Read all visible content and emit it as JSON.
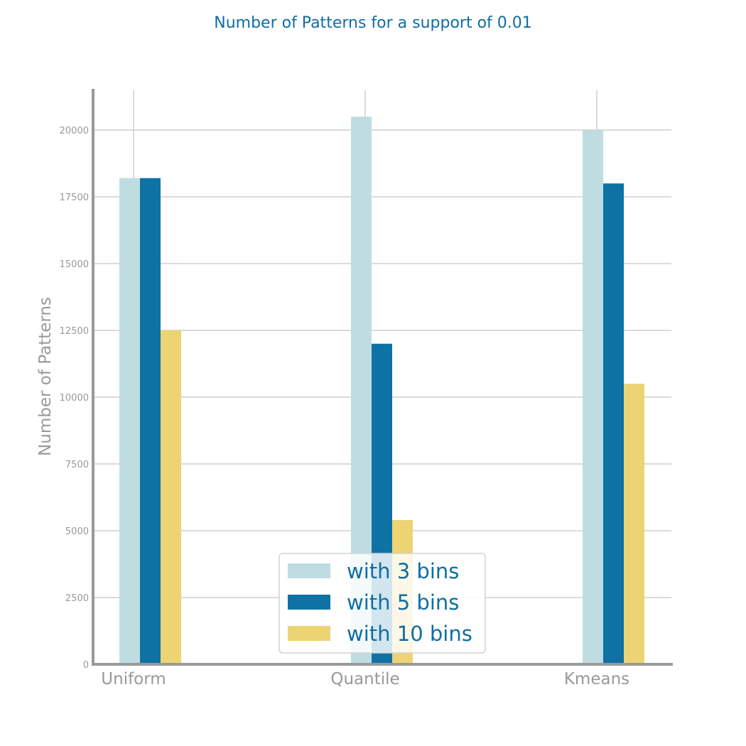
{
  "chart_data": {
    "type": "bar",
    "title": "Number of Patterns for a support of 0.01",
    "xlabel": "",
    "ylabel": "Number of Patterns",
    "categories": [
      "Uniform",
      "Quantile",
      "Kmeans"
    ],
    "series": [
      {
        "name": "with 3 bins",
        "color": "#bfdde1",
        "values": [
          18200,
          20500,
          20000
        ]
      },
      {
        "name": "with 5 bins",
        "color": "#0e72a4",
        "values": [
          18200,
          12000,
          18000
        ]
      },
      {
        "name": "with 10 bins",
        "color": "#ecd473",
        "values": [
          12500,
          5400,
          10500
        ]
      }
    ],
    "ylim": [
      0,
      21500
    ],
    "yticks": [
      0,
      2500,
      5000,
      7500,
      10000,
      12500,
      15000,
      17500,
      20000
    ],
    "grid": true,
    "legend_position": "bottom-center"
  }
}
